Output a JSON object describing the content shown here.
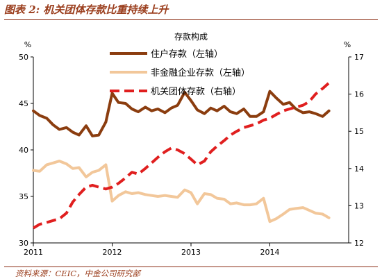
{
  "figure": {
    "title": "图表 2: 机关团体存款比重持续上升",
    "source": "资料来源：CEIC，中金公司研究部"
  },
  "colors": {
    "household": "#8b3d0f",
    "non_financial": "#f2c79a",
    "institutional": "#e01f1f",
    "axis": "#000000",
    "accent": "#9a3d1c"
  },
  "chart_data": {
    "type": "line",
    "title": "存款构成",
    "left_unit": "%",
    "right_unit": "%",
    "left_ylim": [
      30,
      50
    ],
    "right_ylim": [
      12,
      17
    ],
    "left_ticks": [
      "30",
      "35",
      "40",
      "45",
      "50"
    ],
    "right_ticks": [
      "12",
      "13",
      "14",
      "15",
      "16",
      "17"
    ],
    "x_ticks": [
      "2011",
      "2012",
      "2013",
      "2014"
    ],
    "x_tick_values": [
      2011,
      2012,
      2013,
      2014
    ],
    "x_range": [
      2011,
      2015
    ],
    "legend_position": "top-center",
    "grid": false,
    "series": [
      {
        "name": "住户存款（左轴）",
        "axis": "left",
        "style": "solid",
        "x": [
          2011.0,
          2011.08,
          2011.17,
          2011.25,
          2011.33,
          2011.42,
          2011.5,
          2011.58,
          2011.67,
          2011.75,
          2011.83,
          2011.92,
          2012.0,
          2012.08,
          2012.17,
          2012.25,
          2012.33,
          2012.42,
          2012.5,
          2012.58,
          2012.67,
          2012.75,
          2012.83,
          2012.92,
          2013.0,
          2013.08,
          2013.17,
          2013.25,
          2013.33,
          2013.42,
          2013.5,
          2013.58,
          2013.67,
          2013.75,
          2013.83,
          2013.92,
          2014.0,
          2014.08,
          2014.17,
          2014.25,
          2014.33,
          2014.42,
          2014.5,
          2014.58,
          2014.67,
          2014.75
        ],
        "values": [
          44.2,
          43.7,
          43.4,
          42.7,
          42.2,
          42.4,
          41.9,
          41.6,
          42.6,
          41.5,
          41.6,
          43.0,
          46.1,
          45.1,
          45.0,
          44.4,
          44.1,
          44.6,
          44.2,
          44.4,
          44.0,
          44.5,
          44.8,
          46.2,
          45.3,
          44.3,
          43.9,
          44.5,
          44.2,
          44.7,
          44.1,
          43.9,
          44.4,
          43.6,
          43.6,
          44.1,
          46.3,
          45.6,
          44.9,
          45.1,
          44.4,
          44.0,
          44.1,
          43.9,
          43.6,
          44.2
        ]
      },
      {
        "name": "非金融企业存款（左轴）",
        "axis": "left",
        "style": "solid",
        "x": [
          2011.0,
          2011.08,
          2011.17,
          2011.25,
          2011.33,
          2011.42,
          2011.5,
          2011.58,
          2011.67,
          2011.75,
          2011.83,
          2011.92,
          2012.0,
          2012.08,
          2012.17,
          2012.25,
          2012.33,
          2012.42,
          2012.5,
          2012.58,
          2012.67,
          2012.75,
          2012.83,
          2012.92,
          2013.0,
          2013.08,
          2013.17,
          2013.25,
          2013.33,
          2013.42,
          2013.5,
          2013.58,
          2013.67,
          2013.75,
          2013.83,
          2013.92,
          2014.0,
          2014.08,
          2014.17,
          2014.25,
          2014.33,
          2014.42,
          2014.5,
          2014.58,
          2014.67,
          2014.75
        ],
        "values": [
          37.8,
          37.7,
          38.4,
          38.6,
          38.8,
          38.5,
          38.0,
          38.1,
          37.1,
          37.6,
          37.8,
          38.4,
          34.5,
          35.1,
          35.5,
          35.3,
          35.4,
          35.2,
          35.1,
          35.0,
          35.1,
          35.0,
          34.9,
          35.7,
          35.4,
          34.2,
          35.3,
          35.2,
          34.8,
          34.7,
          34.2,
          34.3,
          34.1,
          34.1,
          34.2,
          34.8,
          32.3,
          32.6,
          33.1,
          33.6,
          33.7,
          33.8,
          33.5,
          33.2,
          33.1,
          32.7
        ]
      },
      {
        "name": "机关团体存款（右轴）",
        "axis": "right",
        "style": "dashed",
        "x": [
          2011.0,
          2011.08,
          2011.17,
          2011.25,
          2011.33,
          2011.42,
          2011.5,
          2011.58,
          2011.67,
          2011.75,
          2011.83,
          2011.92,
          2012.0,
          2012.08,
          2012.17,
          2012.25,
          2012.33,
          2012.42,
          2012.5,
          2012.58,
          2012.67,
          2012.75,
          2012.83,
          2012.92,
          2013.0,
          2013.08,
          2013.17,
          2013.25,
          2013.33,
          2013.42,
          2013.5,
          2013.58,
          2013.67,
          2013.75,
          2013.83,
          2013.92,
          2014.0,
          2014.08,
          2014.17,
          2014.25,
          2014.33,
          2014.42,
          2014.5,
          2014.58,
          2014.67,
          2014.75
        ],
        "values": [
          12.4,
          12.5,
          12.55,
          12.6,
          12.65,
          12.8,
          13.1,
          13.3,
          13.5,
          13.55,
          13.5,
          13.45,
          13.5,
          13.6,
          13.75,
          13.9,
          13.85,
          14.0,
          14.15,
          14.3,
          14.45,
          14.55,
          14.5,
          14.4,
          14.25,
          14.1,
          14.2,
          14.45,
          14.6,
          14.75,
          14.9,
          15.0,
          15.1,
          15.15,
          15.2,
          15.3,
          15.35,
          15.45,
          15.55,
          15.6,
          15.65,
          15.7,
          15.8,
          16.0,
          16.15,
          16.3
        ]
      }
    ]
  }
}
